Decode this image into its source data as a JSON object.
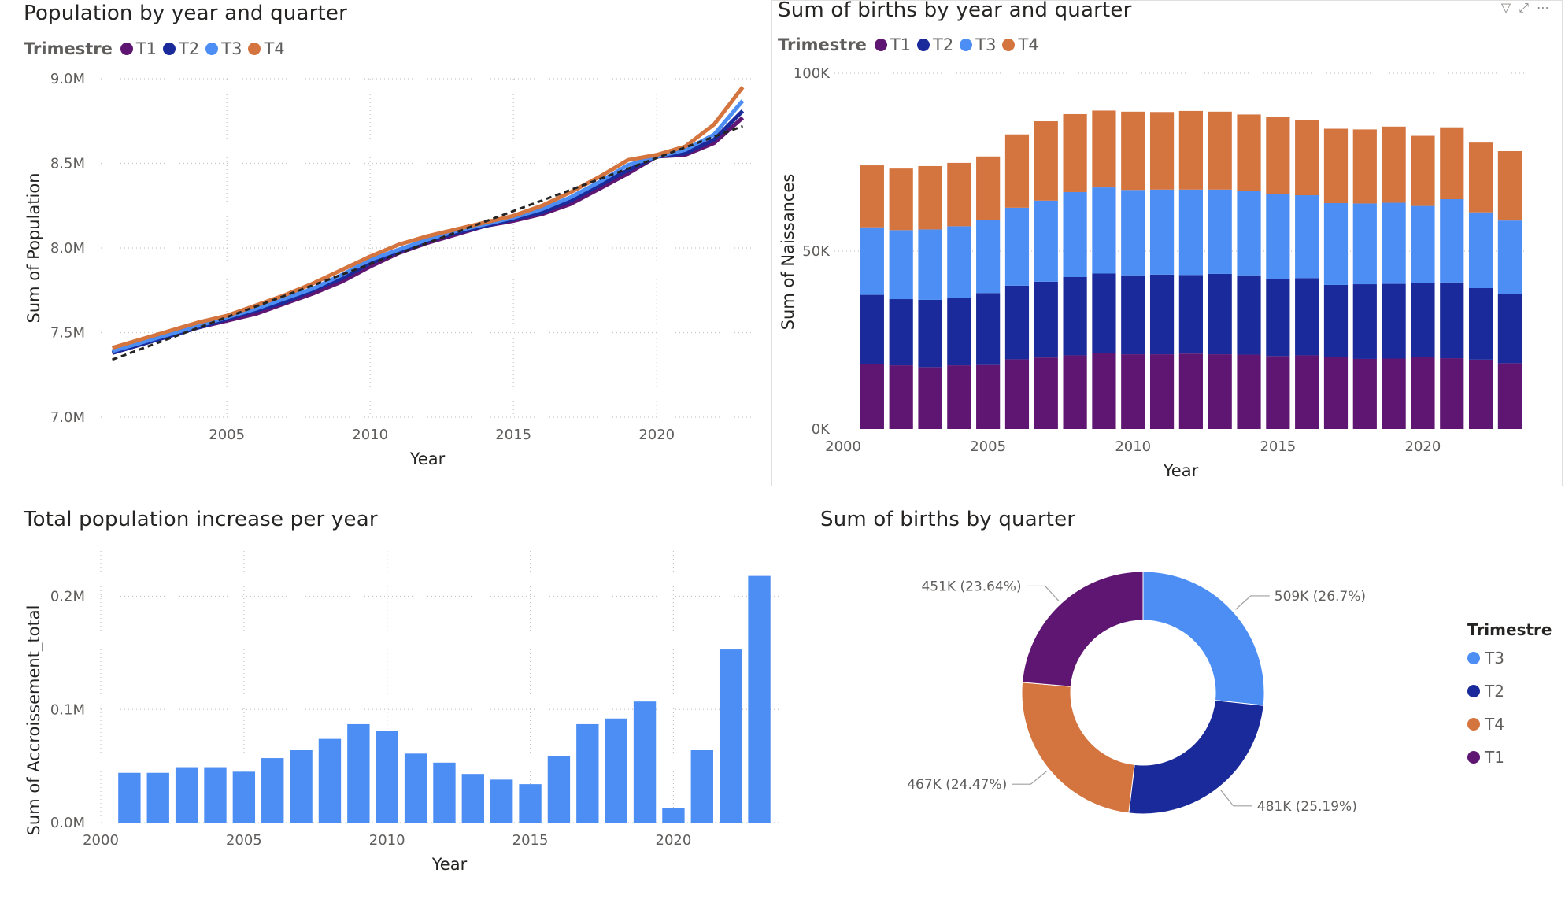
{
  "colors": {
    "T1": "#5f1672",
    "T2": "#1a2a9a",
    "T3": "#4c8ef4",
    "T4": "#d4743f",
    "bar": "#4c8ef4",
    "grid": "#c8c6c4"
  },
  "charts": {
    "pop": {
      "title": "Population by year and quarter"
    },
    "births": {
      "title": "Sum of births by year and quarter"
    },
    "incr": {
      "title": "Total population increase per year"
    },
    "donut": {
      "title": "Sum of births by quarter"
    }
  },
  "legend": {
    "title": "Trimestre",
    "items": [
      "T1",
      "T2",
      "T3",
      "T4"
    ]
  },
  "donut_legend": {
    "title": "Trimestre",
    "items": [
      "T3",
      "T2",
      "T4",
      "T1"
    ]
  },
  "chart_data": [
    {
      "id": "pop",
      "type": "line",
      "title": "Population by year and quarter",
      "xlabel": "Year",
      "ylabel": "Sum of Population",
      "xticks": [
        2005,
        2010,
        2015,
        2020
      ],
      "yticks": [
        "7.0M",
        "7.5M",
        "8.0M",
        "8.5M",
        "9.0M"
      ],
      "ylim": [
        7.0,
        9.0
      ],
      "x": [
        2001,
        2002,
        2003,
        2004,
        2005,
        2006,
        2007,
        2008,
        2009,
        2010,
        2011,
        2012,
        2013,
        2014,
        2015,
        2016,
        2017,
        2018,
        2019,
        2020,
        2021,
        2022,
        2023
      ],
      "series": [
        {
          "name": "T1",
          "values": [
            7.38,
            7.43,
            7.48,
            7.53,
            7.57,
            7.61,
            7.67,
            7.73,
            7.8,
            7.89,
            7.97,
            8.03,
            8.08,
            8.13,
            8.16,
            8.2,
            8.26,
            8.35,
            8.44,
            8.54,
            8.55,
            8.62,
            8.77
          ]
        },
        {
          "name": "T2",
          "values": [
            7.38,
            7.43,
            7.48,
            7.53,
            7.58,
            7.63,
            7.68,
            7.75,
            7.82,
            7.91,
            7.98,
            8.04,
            8.09,
            8.13,
            8.17,
            8.21,
            8.28,
            8.37,
            8.46,
            8.54,
            8.56,
            8.64,
            8.81
          ]
        },
        {
          "name": "T3",
          "values": [
            7.39,
            7.44,
            7.49,
            7.54,
            7.59,
            7.64,
            7.7,
            7.76,
            7.84,
            7.93,
            7.99,
            8.05,
            8.1,
            8.14,
            8.18,
            8.23,
            8.3,
            8.39,
            8.49,
            8.54,
            8.58,
            8.67,
            8.87
          ]
        },
        {
          "name": "T4",
          "values": [
            7.41,
            7.46,
            7.51,
            7.56,
            7.6,
            7.66,
            7.72,
            7.79,
            7.87,
            7.95,
            8.02,
            8.07,
            8.11,
            8.15,
            8.19,
            8.25,
            8.33,
            8.42,
            8.52,
            8.55,
            8.6,
            8.73,
            8.95
          ]
        }
      ],
      "trend": {
        "x": [
          2001,
          2023
        ],
        "values": [
          7.34,
          8.72
        ]
      }
    },
    {
      "id": "births",
      "type": "bar",
      "stacked": true,
      "title": "Sum of births by year and quarter",
      "xlabel": "Year",
      "ylabel": "Sum of Naissances",
      "xticks": [
        2000,
        2005,
        2010,
        2015,
        2020
      ],
      "yticks": [
        "0K",
        "50K",
        "100K"
      ],
      "ylim": [
        0,
        100000
      ],
      "categories": [
        2001,
        2002,
        2003,
        2004,
        2005,
        2006,
        2007,
        2008,
        2009,
        2010,
        2011,
        2012,
        2013,
        2014,
        2015,
        2016,
        2017,
        2018,
        2019,
        2020,
        2021,
        2022,
        2023
      ],
      "series": [
        {
          "name": "T1",
          "values": [
            18200,
            17900,
            17400,
            17900,
            18000,
            19600,
            20100,
            20700,
            21300,
            21000,
            21000,
            21200,
            21000,
            20900,
            20500,
            20700,
            20200,
            19700,
            19800,
            20300,
            19900,
            19500,
            18500
          ]
        },
        {
          "name": "T2",
          "values": [
            19500,
            18600,
            18900,
            19000,
            20200,
            20700,
            21300,
            22000,
            22400,
            22200,
            22400,
            22100,
            22600,
            22300,
            21700,
            21700,
            20300,
            21000,
            21000,
            20700,
            21300,
            20100,
            19400
          ]
        },
        {
          "name": "T3",
          "values": [
            19000,
            19400,
            19800,
            20100,
            20600,
            21900,
            22800,
            23900,
            24200,
            24000,
            23900,
            24000,
            23700,
            23700,
            23900,
            23300,
            23000,
            22700,
            22800,
            21700,
            23400,
            21300,
            20700
          ]
        },
        {
          "name": "T4",
          "values": [
            17400,
            17300,
            17800,
            17800,
            17800,
            20600,
            22300,
            21900,
            21600,
            22000,
            21800,
            22100,
            21900,
            21500,
            21700,
            21200,
            20900,
            20800,
            21400,
            19700,
            20200,
            19600,
            19500
          ]
        }
      ]
    },
    {
      "id": "incr",
      "type": "bar",
      "title": "Total population increase per year",
      "xlabel": "Year",
      "ylabel": "Sum of Accroissement_total",
      "xticks": [
        2000,
        2005,
        2010,
        2015,
        2020
      ],
      "yticks": [
        "0.0M",
        "0.1M",
        "0.2M"
      ],
      "ylim": [
        0,
        0.24
      ],
      "categories": [
        2001,
        2002,
        2003,
        2004,
        2005,
        2006,
        2007,
        2008,
        2009,
        2010,
        2011,
        2012,
        2013,
        2014,
        2015,
        2016,
        2017,
        2018,
        2019,
        2020,
        2021,
        2022,
        2023
      ],
      "values": [
        0.044,
        0.044,
        0.049,
        0.049,
        0.045,
        0.057,
        0.064,
        0.074,
        0.087,
        0.081,
        0.061,
        0.053,
        0.043,
        0.038,
        0.034,
        0.059,
        0.087,
        0.092,
        0.107,
        0.013,
        0.064,
        0.153,
        0.218
      ]
    },
    {
      "id": "donut",
      "type": "pie",
      "title": "Sum of births by quarter",
      "slices": [
        {
          "name": "T3",
          "value": 509,
          "label": "509K (26.7%)"
        },
        {
          "name": "T2",
          "value": 481,
          "label": "481K (25.19%)"
        },
        {
          "name": "T4",
          "value": 467,
          "label": "467K (24.47%)"
        },
        {
          "name": "T1",
          "value": 451,
          "label": "451K (23.64%)"
        }
      ],
      "legend_position": "right"
    }
  ]
}
